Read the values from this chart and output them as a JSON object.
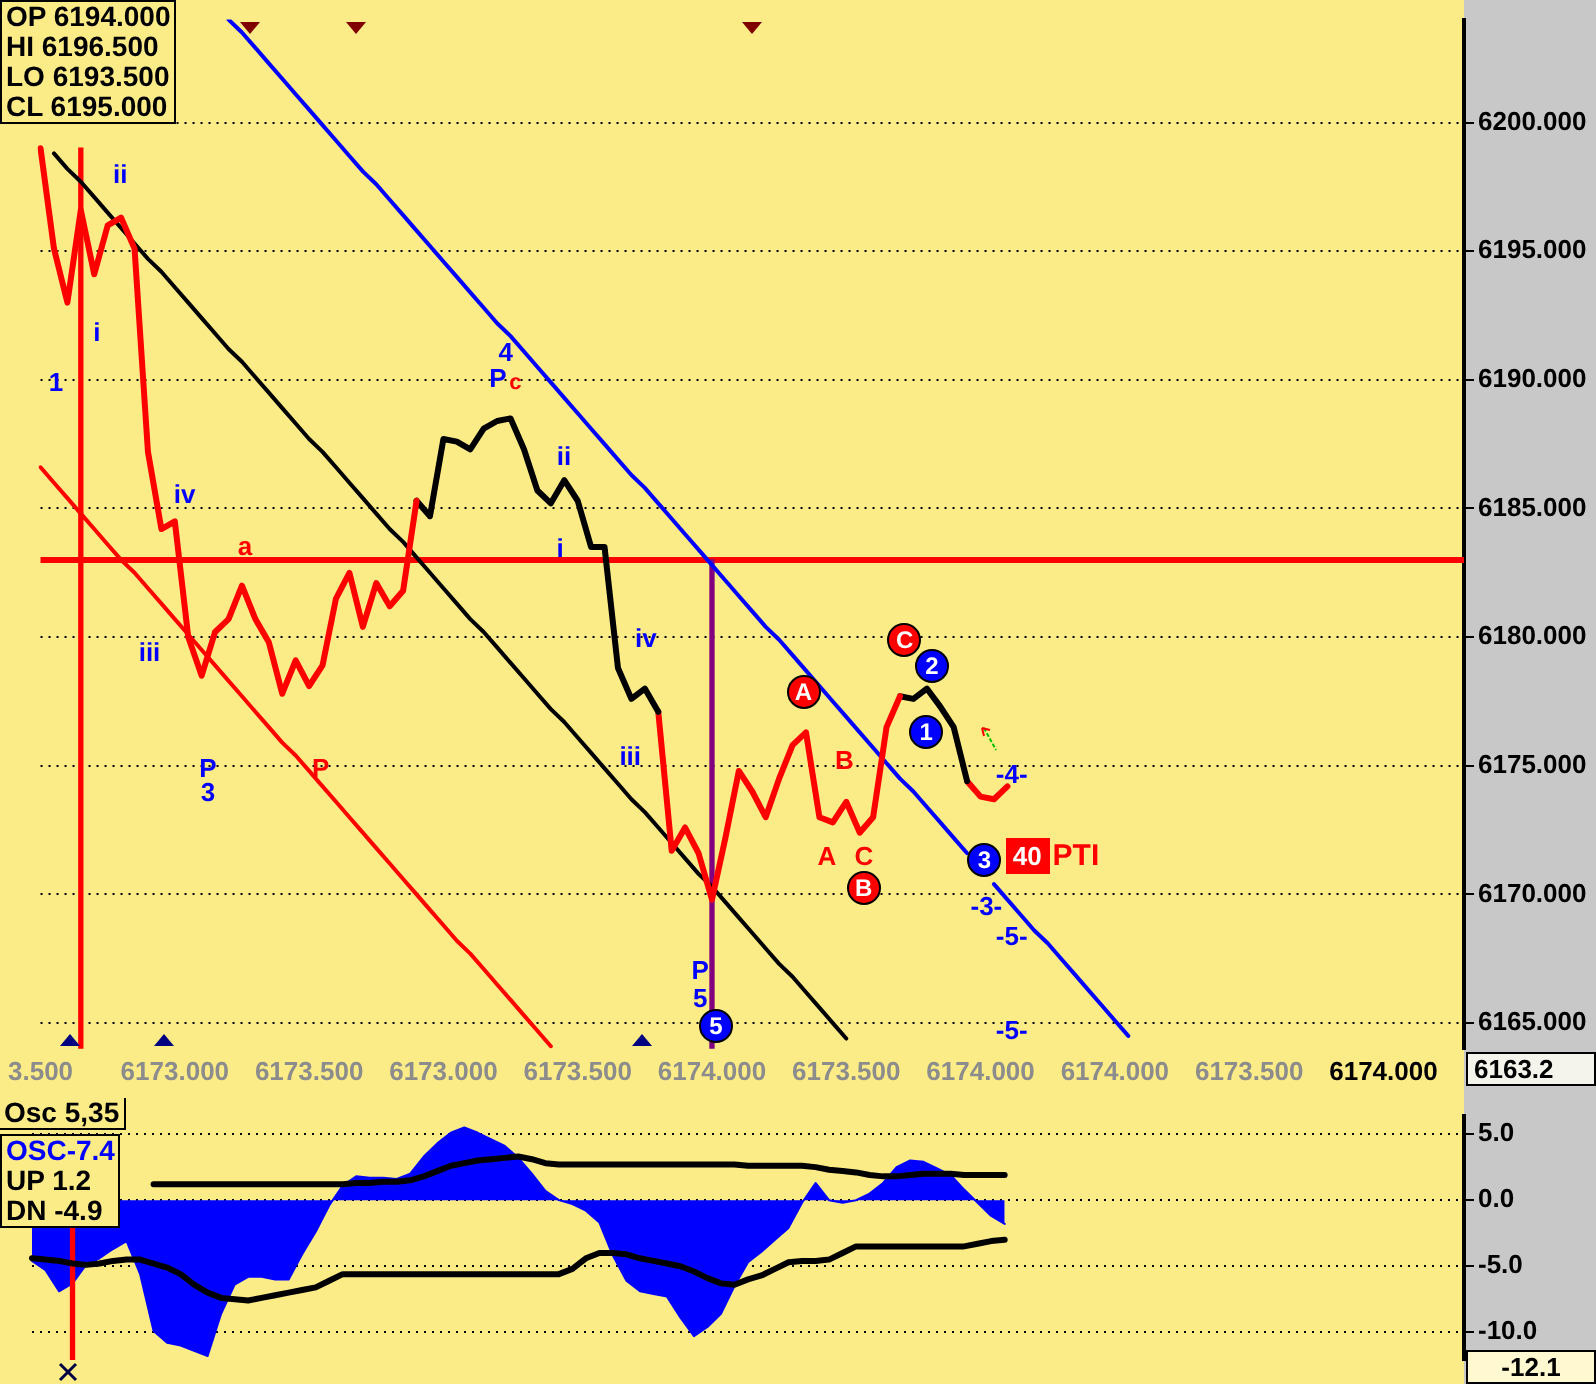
{
  "chart_data": [
    {
      "type": "line",
      "categories": [
        "3.500",
        null,
        null,
        null,
        null,
        null,
        null,
        null,
        null,
        null,
        "6173.000",
        null,
        null,
        null,
        null,
        null,
        null,
        null,
        null,
        null,
        "6173.500",
        null,
        null,
        null,
        null,
        null,
        null,
        null,
        null,
        null,
        "6173.000",
        null,
        null,
        null,
        null,
        null,
        null,
        null,
        null,
        null,
        "6173.500",
        null,
        null,
        null,
        null,
        null,
        null,
        null,
        null,
        null,
        "6174.000",
        null,
        null,
        null,
        null,
        null,
        null,
        null,
        null,
        null,
        "6173.500",
        null,
        null,
        null,
        null,
        null,
        null,
        null,
        null,
        null,
        "6174.000",
        null,
        null,
        null,
        null,
        null,
        null,
        null,
        null,
        null,
        "6174.000",
        null,
        null,
        null,
        null,
        null,
        null,
        null,
        null,
        null,
        "6173.500",
        null,
        null,
        null,
        null,
        null,
        null,
        null,
        null,
        null,
        "6174.000",
        null,
        null,
        null,
        null,
        null,
        null
      ],
      "ylim": [
        6164,
        6204
      ],
      "yticks": [
        {
          "value": 6165,
          "label": "6165.000"
        },
        {
          "value": 6170,
          "label": "6170.000"
        },
        {
          "value": 6175,
          "label": "6175.000"
        },
        {
          "value": 6180,
          "label": "6180.000"
        },
        {
          "value": 6185,
          "label": "6185.000"
        },
        {
          "value": 6190,
          "label": "6190.000"
        },
        {
          "value": 6195,
          "label": "6195.000"
        },
        {
          "value": 6200,
          "label": "6200.000"
        }
      ],
      "grid": "y",
      "series": [
        {
          "color": "#ff0000",
          "values": [
            6199.0,
            6195.1,
            6193.0,
            6196.6,
            6194.1,
            6196.0,
            6196.3,
            6195.1,
            6187.2,
            6184.2,
            6184.5,
            6180.0,
            6178.5,
            6180.2,
            6180.7,
            6182.0,
            6180.7,
            6179.8,
            6177.8,
            6179.1,
            6178.1,
            6178.9,
            6181.5,
            6182.5,
            6180.4,
            6182.1,
            6181.2,
            6181.8,
            6185.3,
            null,
            null,
            null,
            null,
            null,
            null,
            null,
            null,
            null,
            null,
            null,
            null,
            null,
            null,
            null,
            null,
            null,
            null,
            null,
            null,
            null,
            null,
            null,
            null,
            null,
            null,
            null,
            null,
            null,
            null,
            null,
            null,
            null,
            null,
            null,
            null,
            null,
            null,
            null,
            null,
            null,
            null,
            null,
            null,
            null,
            null,
            null,
            null,
            null,
            null,
            null,
            null,
            null,
            null,
            null,
            null,
            null,
            null,
            null,
            null,
            null,
            null,
            null,
            null,
            null,
            null,
            null,
            null,
            null,
            null,
            null,
            null,
            null,
            null,
            null,
            null,
            null,
            null
          ]
        },
        {
          "color": "#000000",
          "values": [
            null,
            null,
            null,
            null,
            null,
            null,
            null,
            null,
            null,
            null,
            null,
            null,
            null,
            null,
            null,
            null,
            null,
            null,
            null,
            null,
            null,
            null,
            null,
            null,
            null,
            null,
            null,
            null,
            6185.3,
            6184.7,
            6187.7,
            6187.6,
            6187.3,
            6188.1,
            6188.4,
            6188.5,
            6187.3,
            6185.7,
            6185.2,
            6186.1,
            6185.3,
            6183.5,
            6183.5,
            6178.8,
            6177.6,
            6178.0,
            6177.1,
            null,
            null,
            null,
            null,
            null,
            null,
            null,
            null,
            null,
            null,
            null,
            null,
            null,
            null,
            null,
            null,
            null,
            null,
            null,
            null,
            null,
            null,
            null,
            null,
            null,
            null,
            null,
            null,
            null,
            null,
            null,
            null,
            null,
            null,
            null,
            null,
            null,
            null,
            null,
            null,
            null,
            null,
            null,
            null,
            null,
            null,
            null,
            null,
            null,
            null,
            null,
            null,
            null,
            null,
            null,
            null,
            null,
            null,
            null,
            null
          ]
        },
        {
          "color": "#ff0000",
          "values": [
            null,
            null,
            null,
            null,
            null,
            null,
            null,
            null,
            null,
            null,
            null,
            null,
            null,
            null,
            null,
            null,
            null,
            null,
            null,
            null,
            null,
            null,
            null,
            null,
            null,
            null,
            null,
            null,
            null,
            null,
            null,
            null,
            null,
            null,
            null,
            null,
            null,
            null,
            null,
            null,
            null,
            null,
            null,
            null,
            null,
            null,
            6177.1,
            6171.7,
            6172.6,
            6171.6,
            6169.8,
            6172.2,
            6174.8,
            6174.0,
            6173.0,
            6174.5,
            6175.8,
            6176.3,
            6173.0,
            6172.8,
            6173.6,
            6172.4,
            6173.0,
            6176.5,
            6177.7,
            null,
            null,
            null,
            null,
            null,
            null,
            null,
            null,
            null,
            null,
            null,
            null,
            null,
            null,
            null,
            null,
            null,
            null,
            null,
            null,
            null,
            null,
            null,
            null,
            null,
            null,
            null,
            null,
            null,
            null,
            null,
            null,
            null,
            null,
            null,
            null,
            null,
            null,
            null,
            null,
            null,
            null
          ]
        },
        {
          "color": "#000000",
          "values": [
            null,
            null,
            null,
            null,
            null,
            null,
            null,
            null,
            null,
            null,
            null,
            null,
            null,
            null,
            null,
            null,
            null,
            null,
            null,
            null,
            null,
            null,
            null,
            null,
            null,
            null,
            null,
            null,
            null,
            null,
            null,
            null,
            null,
            null,
            null,
            null,
            null,
            null,
            null,
            null,
            null,
            null,
            null,
            null,
            null,
            null,
            null,
            null,
            null,
            null,
            null,
            null,
            null,
            null,
            null,
            null,
            null,
            null,
            null,
            null,
            null,
            null,
            null,
            null,
            6177.7,
            6177.6,
            6178.0,
            6177.3,
            6176.5,
            6174.4,
            null,
            null,
            null,
            null,
            null,
            null,
            null,
            null,
            null,
            null,
            null,
            null,
            null,
            null,
            null,
            null,
            null,
            null,
            null,
            null,
            null,
            null,
            null,
            null,
            null,
            null,
            null,
            null,
            null,
            null,
            null,
            null,
            null,
            null,
            null,
            null,
            null
          ]
        },
        {
          "color": "#ff0000",
          "values": [
            null,
            null,
            null,
            null,
            null,
            null,
            null,
            null,
            null,
            null,
            null,
            null,
            null,
            null,
            null,
            null,
            null,
            null,
            null,
            null,
            null,
            null,
            null,
            null,
            null,
            null,
            null,
            null,
            null,
            null,
            null,
            null,
            null,
            null,
            null,
            null,
            null,
            null,
            null,
            null,
            null,
            null,
            null,
            null,
            null,
            null,
            null,
            null,
            null,
            null,
            null,
            null,
            null,
            null,
            null,
            null,
            null,
            null,
            null,
            null,
            null,
            null,
            null,
            null,
            null,
            null,
            null,
            null,
            null,
            6174.4,
            6173.8,
            6173.7,
            6174.2,
            null,
            null,
            null,
            null,
            null,
            null,
            null,
            null,
            null,
            null,
            null,
            null,
            null,
            null,
            null,
            null,
            null,
            null,
            null,
            null,
            null,
            null,
            null,
            null,
            null,
            null,
            null,
            null,
            null,
            null,
            null,
            null,
            null,
            null
          ]
        },
        {
          "color": "#0000ff",
          "values": [
            null,
            null,
            null,
            null,
            null,
            null,
            null,
            null,
            null,
            null,
            null,
            null,
            null,
            null,
            6204.0,
            6203.5,
            6202.9,
            6202.3,
            6201.7,
            6201.1,
            6200.5,
            6199.9,
            6199.3,
            6198.7,
            6198.1,
            6197.6,
            6197.0,
            6196.4,
            6195.8,
            6195.2,
            6194.6,
            6194.0,
            6193.4,
            6192.8,
            6192.2,
            6191.7,
            6191.1,
            6190.5,
            6189.9,
            6189.3,
            6188.7,
            6188.1,
            6187.5,
            6186.9,
            6186.3,
            6185.8,
            6185.2,
            6184.6,
            6184.0,
            6183.4,
            6182.8,
            6182.2,
            6181.6,
            6181.0,
            6180.4,
            6179.9,
            6179.3,
            6178.7,
            6178.1,
            6177.5,
            6176.9,
            6176.3,
            6175.7,
            6175.1,
            6174.5,
            6174.0,
            6173.4,
            6172.8,
            6172.2,
            6171.6,
            null,
            6170.4,
            6169.8,
            6169.2,
            6168.6,
            6168.1,
            6167.5,
            6166.9,
            6166.3,
            6165.7,
            6165.1,
            6164.5,
            null,
            null,
            null,
            null,
            null,
            null,
            null,
            null,
            null,
            null,
            null,
            null,
            null,
            null,
            null,
            null,
            null,
            null,
            null,
            null,
            null,
            null,
            null,
            null,
            null
          ]
        },
        {
          "color": "#000000",
          "values": [
            null,
            6198.8,
            6198.2,
            6197.7,
            6197.1,
            6196.5,
            6195.9,
            6195.3,
            6194.7,
            6194.2,
            6193.6,
            6193.0,
            6192.4,
            6191.8,
            6191.2,
            6190.7,
            6190.1,
            6189.5,
            6188.9,
            6188.3,
            6187.7,
            6187.2,
            6186.6,
            6186.0,
            6185.4,
            6184.8,
            6184.2,
            6183.7,
            6183.1,
            6182.5,
            6181.9,
            6181.3,
            6180.7,
            6180.2,
            6179.6,
            6179.0,
            6178.4,
            6177.8,
            6177.2,
            6176.7,
            6176.1,
            6175.5,
            6174.9,
            6174.3,
            6173.7,
            6173.2,
            6172.6,
            6172.0,
            6171.4,
            6170.8,
            6170.3,
            6169.7,
            6169.1,
            6168.5,
            6167.9,
            6167.3,
            6166.8,
            6166.2,
            6165.6,
            6165.0,
            6164.4,
            null,
            null,
            null,
            null,
            null,
            null,
            null,
            null,
            null,
            null,
            null,
            null,
            null,
            null,
            null,
            null,
            null,
            null,
            null,
            null,
            null,
            null,
            null,
            null,
            null,
            null,
            null,
            null,
            null,
            null,
            null,
            null,
            null,
            null,
            null,
            null,
            null,
            null,
            null,
            null,
            null,
            null,
            null,
            null,
            null,
            null
          ]
        },
        {
          "color": "#ff0000",
          "values": [
            6186.6,
            6186.0,
            6185.4,
            6184.8,
            6184.2,
            6183.6,
            6183.0,
            6182.5,
            6181.9,
            6181.3,
            6180.7,
            6180.1,
            6179.5,
            6178.9,
            6178.3,
            6177.7,
            6177.1,
            6176.5,
            6175.9,
            6175.4,
            6174.8,
            6174.2,
            6173.6,
            6173.0,
            6172.4,
            6171.8,
            6171.2,
            6170.6,
            6170.0,
            6169.4,
            6168.8,
            6168.2,
            6167.7,
            6167.1,
            6166.5,
            6165.9,
            6165.3,
            6164.7,
            6164.1,
            null,
            null,
            null,
            null,
            null,
            null,
            null,
            null,
            null,
            null,
            null,
            null,
            null,
            null,
            null,
            null,
            null,
            null,
            null,
            null,
            null,
            null,
            null,
            null,
            null,
            null,
            null,
            null,
            null,
            null,
            null,
            null,
            null,
            null,
            null,
            null,
            null,
            null,
            null,
            null,
            null,
            null,
            null,
            null,
            null,
            null,
            null,
            null,
            null,
            null,
            null,
            null,
            null,
            null,
            null,
            null,
            null,
            null,
            null,
            null,
            null,
            null,
            null,
            null,
            null,
            null,
            null,
            null
          ]
        },
        {
          "type": "bar",
          "color": "#800080",
          "values": [
            null,
            null,
            null,
            null,
            null,
            null,
            null,
            null,
            null,
            null,
            null,
            null,
            null,
            null,
            null,
            null,
            null,
            null,
            null,
            null,
            null,
            null,
            null,
            null,
            null,
            null,
            null,
            null,
            null,
            null,
            null,
            null,
            null,
            null,
            null,
            null,
            null,
            null,
            null,
            null,
            null,
            null,
            null,
            null,
            null,
            null,
            null,
            null,
            null,
            null,
            6183,
            null,
            null,
            null,
            null,
            null,
            null,
            null,
            null,
            null,
            null,
            null,
            null,
            null,
            null,
            null,
            null,
            null,
            null,
            null,
            null,
            null,
            null,
            null,
            null,
            null,
            null,
            null,
            null,
            null,
            null,
            null,
            null,
            null,
            null,
            null,
            null,
            null,
            null,
            null,
            null,
            null,
            null,
            null,
            null,
            null,
            null,
            null,
            null,
            null,
            null,
            null,
            null,
            null,
            null,
            null,
            null
          ]
        },
        {
          "type": "bar",
          "color": "#ff0000",
          "values": [
            null,
            null,
            null,
            6199.0,
            null,
            null,
            null,
            null,
            null,
            null,
            null,
            null,
            null,
            null,
            null,
            null,
            null,
            null,
            null,
            null,
            null,
            null,
            null,
            null,
            null,
            null,
            null,
            null,
            null,
            null,
            null,
            null,
            null,
            null,
            null,
            null,
            null,
            null,
            null,
            null,
            null,
            null,
            null,
            null,
            null,
            null,
            null,
            null,
            null,
            null,
            null,
            null,
            null,
            null,
            null,
            null,
            null,
            null,
            null,
            null,
            null,
            null,
            null,
            null,
            null,
            null,
            null,
            null,
            null,
            null,
            null,
            null,
            null,
            null,
            null,
            null,
            null,
            null,
            null,
            null,
            null,
            null,
            null,
            null,
            null,
            null,
            null,
            null,
            null,
            null,
            null,
            null,
            null,
            null,
            null,
            null,
            null,
            null,
            null,
            null,
            null,
            null,
            null,
            null,
            null,
            null,
            null
          ]
        }
      ],
      "ref_lines": [
        {
          "axis": "y",
          "value": 6183,
          "color": "#ff0000"
        }
      ],
      "annotations": [
        "1",
        "i",
        "ii",
        "iii",
        "iv",
        "a",
        "P",
        "3",
        "P",
        "4",
        "P",
        "c",
        "ii",
        "i",
        "iv",
        "iii",
        "P",
        "5",
        "5",
        "A",
        "B",
        "A",
        "C",
        "B",
        "C",
        "2",
        "1",
        "3",
        "40",
        "PTI",
        "-4-",
        "-3-",
        "-5-",
        "-5-",
        "OP 6194.000",
        "HI 6196.500",
        "LO 6193.500",
        "CL 6195.000",
        "6163.2"
      ]
    },
    {
      "type": "line",
      "categories": [
        null,
        null,
        null,
        null,
        null,
        null,
        null,
        null,
        null,
        null,
        null,
        null,
        null,
        null,
        null,
        null,
        null,
        null,
        null,
        null,
        null,
        null,
        null,
        null,
        null,
        null,
        null,
        null,
        null,
        null,
        null,
        null,
        null,
        null,
        null,
        null,
        null,
        null,
        null,
        null,
        null,
        null,
        null,
        null,
        null,
        null,
        null,
        null,
        null,
        null,
        null,
        null,
        null,
        null,
        null,
        null,
        null,
        null,
        null,
        null,
        null,
        null,
        null,
        null,
        null,
        null,
        null,
        null,
        null,
        null,
        null,
        null,
        null,
        null,
        null,
        null,
        null,
        null,
        null,
        null,
        null,
        null,
        null,
        null,
        null,
        null,
        null,
        null,
        null,
        null,
        null,
        null,
        null,
        null,
        null,
        null,
        null,
        null,
        null,
        null,
        null,
        null,
        null,
        null,
        null,
        null,
        null
      ],
      "ylim": [
        -12.1,
        6.4
      ],
      "yticks": [
        {
          "value": 5,
          "label": "5.0"
        },
        {
          "value": 0,
          "label": "0.0"
        },
        {
          "value": -5,
          "label": "-5.0"
        },
        {
          "value": -10,
          "label": "-10.0"
        }
      ],
      "grid": "y",
      "tick_labels": "y",
      "series": [
        {
          "type": "area",
          "color": "#0000ff",
          "values": [
            -4.6,
            -5.3,
            -6.9,
            -6.3,
            -4.9,
            -4.4,
            -3.7,
            -3.1,
            -5.6,
            -9.9,
            -10.8,
            -11.0,
            -11.4,
            -11.8,
            -8.6,
            -6.4,
            -5.8,
            -5.8,
            -6.0,
            -6.0,
            -4.1,
            -2.4,
            -0.4,
            1.1,
            1.8,
            1.7,
            1.7,
            1.6,
            2.0,
            3.3,
            4.3,
            5.1,
            5.5,
            5.1,
            4.6,
            4.1,
            3.2,
            2.0,
            0.7,
            0.0,
            -0.3,
            -0.8,
            -1.7,
            -4.2,
            -6.1,
            -6.9,
            -7.1,
            -7.3,
            -8.9,
            -10.3,
            -9.6,
            -8.6,
            -6.5,
            -4.7,
            -3.9,
            -3.0,
            -2.1,
            -0.2,
            1.3,
            0.0,
            -0.2,
            0.0,
            0.5,
            1.3,
            2.5,
            3.0,
            2.9,
            2.4,
            1.9,
            0.8,
            -0.2,
            -1.2,
            -1.8,
            null,
            null,
            null,
            null,
            null,
            null,
            null,
            null,
            null,
            null,
            null,
            null,
            null,
            null,
            null,
            null,
            null,
            null,
            null,
            null,
            null,
            null,
            null,
            null,
            null,
            null,
            null,
            null,
            null,
            null,
            null,
            null,
            null,
            null
          ]
        },
        {
          "color": "#000000",
          "values": [
            null,
            null,
            null,
            null,
            null,
            null,
            null,
            null,
            null,
            1.2,
            1.2,
            1.2,
            1.2,
            1.2,
            1.2,
            1.2,
            1.2,
            1.2,
            1.2,
            1.2,
            1.2,
            1.2,
            1.2,
            1.2,
            1.3,
            1.3,
            1.4,
            1.4,
            1.5,
            1.8,
            2.2,
            2.6,
            2.8,
            3.0,
            3.1,
            3.2,
            3.3,
            3.1,
            2.8,
            2.7,
            2.7,
            2.7,
            2.7,
            2.7,
            2.7,
            2.7,
            2.7,
            2.7,
            2.7,
            2.7,
            2.7,
            2.7,
            2.7,
            2.6,
            2.6,
            2.6,
            2.6,
            2.6,
            2.5,
            2.3,
            2.2,
            2.1,
            1.9,
            1.8,
            1.8,
            1.9,
            2.0,
            2.0,
            2.0,
            1.9,
            1.9,
            1.9,
            1.9,
            null,
            null,
            null,
            null,
            null,
            null,
            null,
            null,
            null,
            null,
            null,
            null,
            null,
            null,
            null,
            null,
            null,
            null,
            null,
            null,
            null,
            null,
            null,
            null,
            null,
            null,
            null,
            null,
            null,
            null,
            null,
            null,
            null,
            null
          ]
        },
        {
          "color": "#000000",
          "values": [
            -4.4,
            -4.5,
            -4.6,
            -4.8,
            -4.9,
            -4.8,
            -4.6,
            -4.5,
            -4.5,
            -4.8,
            -5.1,
            -5.6,
            -6.4,
            -7.0,
            -7.4,
            -7.5,
            -7.6,
            -7.4,
            -7.2,
            -7.0,
            -6.8,
            -6.6,
            -6.1,
            -5.6,
            -5.6,
            -5.6,
            -5.6,
            -5.6,
            -5.6,
            -5.6,
            -5.6,
            -5.6,
            -5.6,
            -5.6,
            -5.6,
            -5.6,
            -5.6,
            -5.6,
            -5.6,
            -5.6,
            -5.2,
            -4.4,
            -4.0,
            -4.0,
            -4.1,
            -4.4,
            -4.6,
            -4.8,
            -5.0,
            -5.4,
            -5.9,
            -6.3,
            -6.4,
            -6.0,
            -5.7,
            -5.2,
            -4.7,
            -4.6,
            -4.6,
            -4.5,
            -4.0,
            -3.5,
            -3.5,
            -3.5,
            -3.5,
            -3.5,
            -3.5,
            -3.5,
            -3.5,
            -3.5,
            -3.3,
            -3.1,
            -3.0,
            null,
            null,
            null,
            null,
            null,
            null,
            null,
            null,
            null,
            null,
            null,
            null,
            null,
            null,
            null,
            null,
            null,
            null,
            null,
            null,
            null,
            null,
            null,
            null,
            null,
            null,
            null,
            null,
            null,
            null,
            null,
            null,
            null,
            null
          ]
        },
        {
          "type": "bar",
          "color": "#ff0000",
          "values": [
            null,
            null,
            null,
            -12.1,
            null,
            null,
            null,
            null,
            null,
            null,
            null,
            null,
            null,
            null,
            null,
            null,
            null,
            null,
            null,
            null,
            null,
            null,
            null,
            null,
            null,
            null,
            null,
            null,
            null,
            null,
            null,
            null,
            null,
            null,
            null,
            null,
            null,
            null,
            null,
            null,
            null,
            null,
            null,
            null,
            null,
            null,
            null,
            null,
            null,
            null,
            null,
            null,
            null,
            null,
            null,
            null,
            null,
            null,
            null,
            null,
            null,
            null,
            null,
            null,
            null,
            null,
            null,
            null,
            null,
            null,
            null,
            null,
            null,
            null,
            null,
            null,
            null,
            null,
            null,
            null,
            null,
            null,
            null,
            null,
            null,
            null,
            null,
            null,
            null,
            null,
            null,
            null,
            null,
            null,
            null,
            null,
            null,
            null,
            null,
            null,
            null,
            null,
            null,
            null,
            null,
            null,
            null
          ]
        }
      ],
      "annotations": [
        "Osc 5,35",
        "OSC-7.4",
        "UP 1.2",
        "DN -4.9",
        "-12.1"
      ]
    }
  ]
}
